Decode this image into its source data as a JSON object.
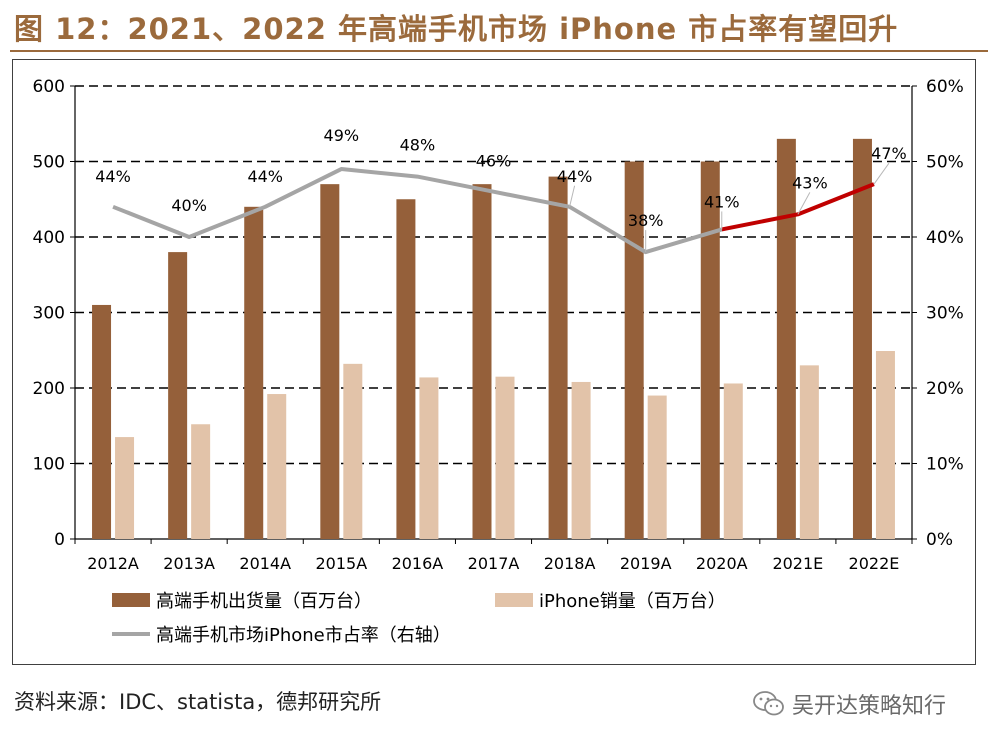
{
  "figure": {
    "title": "图 12：2021、2022 年高端手机市场 iPhone 市占率有望回升",
    "source": "资料来源：IDC、statista，德邦研究所",
    "watermark": "吴开达策略知行",
    "watermark_icon": "wechat-icon"
  },
  "colors": {
    "title": "#9B6A3C",
    "highend_bar": "#95603A",
    "iphone_bar": "#E2C3A9",
    "share_line": "#A5A5A5",
    "forecast_line": "#C00000"
  },
  "chart_data": {
    "type": "bar",
    "categories": [
      "2012A",
      "2013A",
      "2014A",
      "2015A",
      "2016A",
      "2017A",
      "2018A",
      "2019A",
      "2020A",
      "2021E",
      "2022E"
    ],
    "series": [
      {
        "name": "高端手机出货量（百万台）",
        "axis": "left",
        "type": "bar",
        "values": [
          310,
          380,
          440,
          470,
          450,
          470,
          480,
          500,
          500,
          530,
          530
        ]
      },
      {
        "name": "iPhone销量（百万台）",
        "axis": "left",
        "type": "bar",
        "values": [
          135,
          152,
          192,
          232,
          214,
          215,
          208,
          190,
          206,
          230,
          249
        ]
      },
      {
        "name": "高端手机市场iPhone市占率（右轴）",
        "axis": "right",
        "type": "line",
        "values": [
          44,
          40,
          44,
          49,
          48,
          46,
          44,
          38,
          41,
          43,
          47
        ],
        "labels": [
          "44%",
          "40%",
          "44%",
          "49%",
          "48%",
          "46%",
          "44%",
          "38%",
          "41%",
          "43%",
          "47%"
        ],
        "forecast_from_index": 8
      }
    ],
    "ylim": [
      0,
      600
    ],
    "yticks": [
      0,
      100,
      200,
      300,
      400,
      500,
      600
    ],
    "y2lim": [
      0,
      60
    ],
    "y2ticks": [
      "0%",
      "10%",
      "20%",
      "30%",
      "40%",
      "50%",
      "60%"
    ],
    "grid": "dashed horizontal",
    "legend_position": "bottom"
  }
}
